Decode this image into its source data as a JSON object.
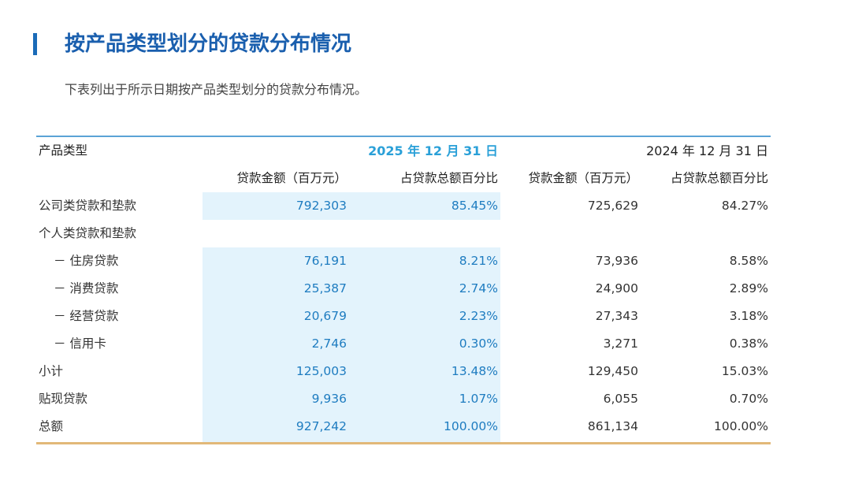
{
  "page": {
    "title": "按产品类型划分的贷款分布情况",
    "subtitle": "下表列出于所示日期按产品类型划分的贷款分布情况。"
  },
  "table": {
    "header": {
      "category": "产品类型",
      "period_current": "2025 年 12 月 31 日",
      "period_prior": "2024 年 12 月 31 日",
      "amount": "贷款金额（百万元）",
      "share": "占贷款总额百分比",
      "amount_prior": "贷款金额（百万元）",
      "share_prior": "占贷款总额百分比"
    },
    "rows": [
      {
        "label": "公司类贷款和垫款",
        "amount_2025": "792,303",
        "share_2025": "85.45%",
        "amount_2024": "725,629",
        "share_2024": "84.27%"
      },
      {
        "label": "个人类贷款和垫款",
        "amount_2025": "",
        "share_2025": "",
        "amount_2024": "",
        "share_2024": ""
      },
      {
        "label": "－ 住房贷款",
        "amount_2025": "76,191",
        "share_2025": "8.21%",
        "amount_2024": "73,936",
        "share_2024": "8.58%"
      },
      {
        "label": "－ 消费贷款",
        "amount_2025": "25,387",
        "share_2025": "2.74%",
        "amount_2024": "24,900",
        "share_2024": "2.89%"
      },
      {
        "label": "－ 经营贷款",
        "amount_2025": "20,679",
        "share_2025": "2.23%",
        "amount_2024": "27,343",
        "share_2024": "3.18%"
      },
      {
        "label": "－ 信用卡",
        "amount_2025": "2,746",
        "share_2025": "0.30%",
        "amount_2024": "3,271",
        "share_2024": "0.38%"
      },
      {
        "label": "小计",
        "amount_2025": "125,003",
        "share_2025": "13.48%",
        "amount_2024": "129,450",
        "share_2024": "15.03%"
      },
      {
        "label": "贴现贷款",
        "amount_2025": "9,936",
        "share_2025": "1.07%",
        "amount_2024": "6,055",
        "share_2024": "0.70%"
      },
      {
        "label": "总额",
        "amount_2025": "927,242",
        "share_2025": "100.00%",
        "amount_2024": "861,134",
        "share_2024": "100.00%"
      }
    ]
  }
}
